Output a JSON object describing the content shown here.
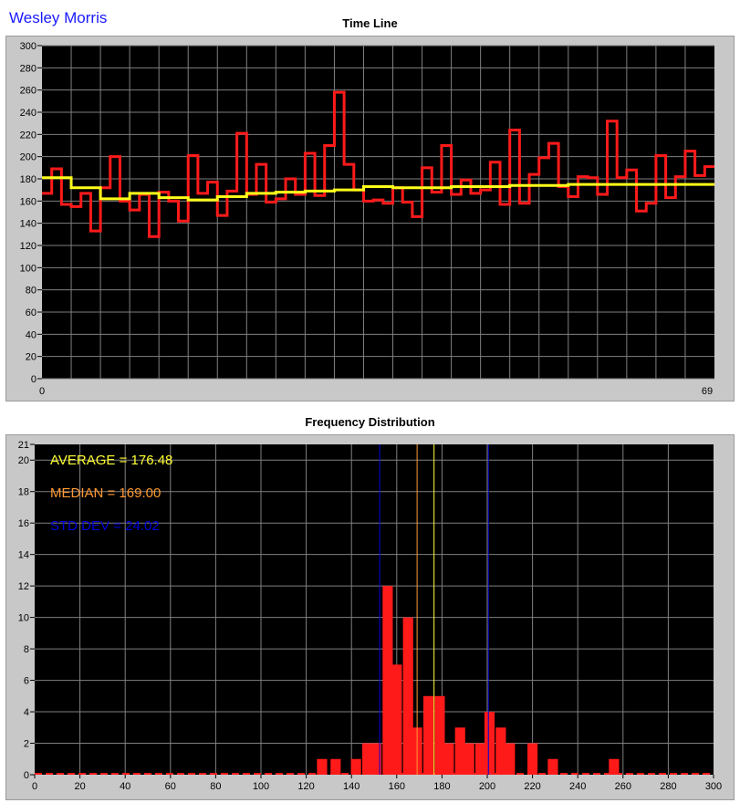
{
  "header": {
    "user_name": "Wesley Morris"
  },
  "chart_data": [
    {
      "type": "line",
      "title": "Time Line",
      "x_start_label": "0",
      "x_end_label": "69",
      "xlim": [
        0,
        69
      ],
      "ylim": [
        0,
        300
      ],
      "yticks": [
        0,
        20,
        40,
        60,
        80,
        100,
        120,
        140,
        160,
        180,
        200,
        220,
        240,
        260,
        280,
        300
      ],
      "grid": true,
      "colors": {
        "background": "#000000",
        "grid": "#808080",
        "raw": "#ff1a1a",
        "average": "#ffff1a"
      },
      "series": [
        {
          "style": "step",
          "color": "#ff1a1a",
          "values": [
            167,
            189,
            157,
            155,
            167,
            133,
            172,
            200,
            160,
            152,
            166,
            128,
            168,
            160,
            142,
            201,
            167,
            177,
            147,
            169,
            221,
            166,
            193,
            159,
            162,
            180,
            166,
            203,
            165,
            210,
            258,
            193,
            170,
            160,
            161,
            158,
            172,
            159,
            146,
            190,
            168,
            210,
            166,
            179,
            167,
            170,
            195,
            157,
            224,
            158,
            184,
            199,
            212,
            173,
            164,
            182,
            181,
            166,
            232,
            181,
            188,
            151,
            158,
            201,
            163,
            182,
            205,
            183,
            191
          ]
        },
        {
          "style": "step",
          "color": "#ffff1a",
          "values": [
            181,
            181,
            181,
            172,
            172,
            172,
            162,
            162,
            162,
            167,
            167,
            167,
            163,
            163,
            163,
            161,
            161,
            161,
            164,
            164,
            164,
            167,
            167,
            167,
            168,
            168,
            168,
            169,
            169,
            169,
            170,
            170,
            170,
            173,
            173,
            173,
            172,
            172,
            172,
            172,
            172,
            172,
            173,
            173,
            173,
            173,
            173,
            173,
            174,
            174,
            174,
            174,
            174,
            174,
            175,
            175,
            175,
            175,
            175,
            175,
            175,
            175,
            175,
            175,
            175,
            175,
            175,
            175,
            175
          ]
        }
      ]
    },
    {
      "type": "bar",
      "title": "Frequency Distribution",
      "xlim": [
        0,
        300
      ],
      "ylim": [
        0,
        21
      ],
      "xticks": [
        0,
        20,
        40,
        60,
        80,
        100,
        120,
        140,
        160,
        180,
        200,
        220,
        240,
        260,
        280,
        300
      ],
      "yticks": [
        0,
        2,
        4,
        6,
        8,
        10,
        12,
        14,
        16,
        18,
        20,
        21
      ],
      "grid": true,
      "bin_width": 4.5,
      "bins": [
        127,
        133,
        142,
        147,
        151,
        156,
        160,
        165,
        169,
        174,
        179,
        183,
        188,
        192,
        197,
        201,
        206,
        210,
        220,
        229,
        256
      ],
      "counts": [
        1,
        1,
        1,
        2,
        2,
        12,
        7,
        10,
        3,
        5,
        5,
        2,
        3,
        2,
        2,
        4,
        3,
        2,
        2,
        1,
        1
      ],
      "annotations": [
        {
          "text": "AVERAGE = 176.48",
          "color": "#ffff33"
        },
        {
          "text": "MEDIAN = 169.00",
          "color": "#ff9933"
        },
        {
          "text": "STD DEV = 24.02",
          "color": "#0000dd"
        }
      ],
      "reference_lines": [
        {
          "x": 176.48,
          "color": "#ffff33"
        },
        {
          "x": 169.0,
          "color": "#ff9933"
        },
        {
          "x": 152.46,
          "color": "#0000dd"
        },
        {
          "x": 200.5,
          "color": "#0000dd"
        }
      ],
      "colors": {
        "background": "#000000",
        "grid": "#808080",
        "bar": "#ff1a1a"
      }
    }
  ]
}
